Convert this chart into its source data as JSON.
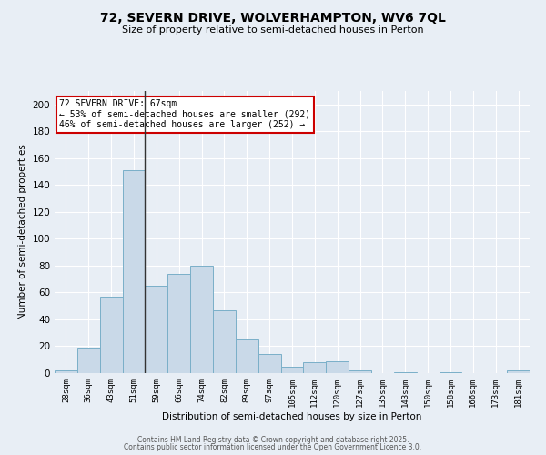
{
  "title_line1": "72, SEVERN DRIVE, WOLVERHAMPTON, WV6 7QL",
  "title_line2": "Size of property relative to semi-detached houses in Perton",
  "xlabel": "Distribution of semi-detached houses by size in Perton",
  "ylabel": "Number of semi-detached properties",
  "categories": [
    "28sqm",
    "36sqm",
    "43sqm",
    "51sqm",
    "59sqm",
    "66sqm",
    "74sqm",
    "82sqm",
    "89sqm",
    "97sqm",
    "105sqm",
    "112sqm",
    "120sqm",
    "127sqm",
    "135sqm",
    "143sqm",
    "150sqm",
    "158sqm",
    "166sqm",
    "173sqm",
    "181sqm"
  ],
  "values": [
    2,
    19,
    57,
    151,
    65,
    74,
    80,
    47,
    25,
    14,
    5,
    8,
    9,
    2,
    0,
    1,
    0,
    1,
    0,
    0,
    2
  ],
  "bar_color": "#c9d9e8",
  "bar_edge_color": "#7aafc8",
  "vline_index": 3.5,
  "vline_color": "#333333",
  "annotation_box_text": "72 SEVERN DRIVE: 67sqm\n← 53% of semi-detached houses are smaller (292)\n46% of semi-detached houses are larger (252) →",
  "annotation_box_color": "#cc0000",
  "annotation_text_fontsize": 7.0,
  "ylim": [
    0,
    210
  ],
  "yticks": [
    0,
    20,
    40,
    60,
    80,
    100,
    120,
    140,
    160,
    180,
    200
  ],
  "background_color": "#e8eef5",
  "grid_color": "#ffffff",
  "title_fontsize": 10,
  "subtitle_fontsize": 8,
  "footer_line1": "Contains HM Land Registry data © Crown copyright and database right 2025.",
  "footer_line2": "Contains public sector information licensed under the Open Government Licence 3.0."
}
